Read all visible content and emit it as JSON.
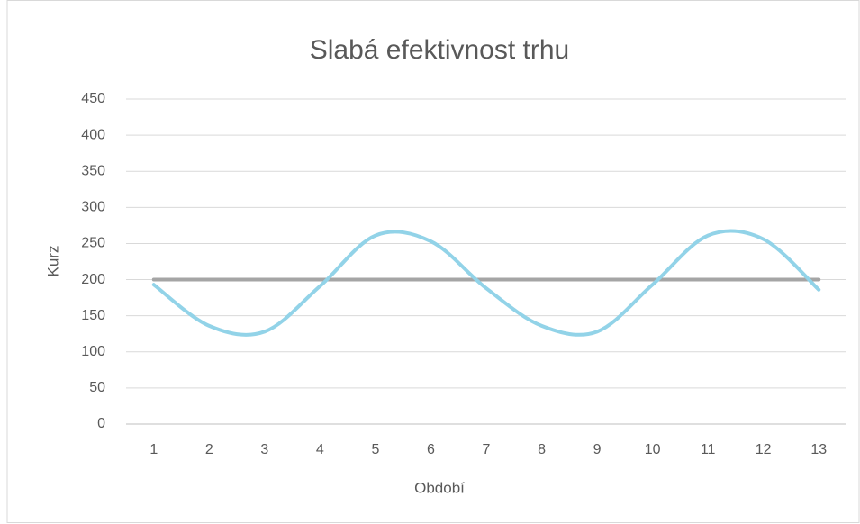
{
  "chart_data": {
    "type": "line",
    "title": "Slabá efektivnost trhu",
    "x_label": "Období",
    "y_label": "Kurz",
    "categories": [
      "1",
      "2",
      "3",
      "4",
      "5",
      "6",
      "7",
      "8",
      "9",
      "10",
      "11",
      "12",
      "13"
    ],
    "series": [
      {
        "color": "#a5a5a5",
        "values": [
          200,
          200,
          200,
          200,
          200,
          200,
          200,
          200,
          200,
          200,
          200,
          200,
          200
        ]
      },
      {
        "color": "#92d3e8",
        "values": [
          193,
          136,
          128,
          191,
          261,
          253,
          188,
          136,
          128,
          193,
          261,
          256,
          186
        ]
      }
    ],
    "smooth": true,
    "ylim": [
      0,
      450
    ],
    "yticks": [
      0,
      50,
      100,
      150,
      200,
      250,
      300,
      350,
      400,
      450
    ],
    "grid": true
  }
}
